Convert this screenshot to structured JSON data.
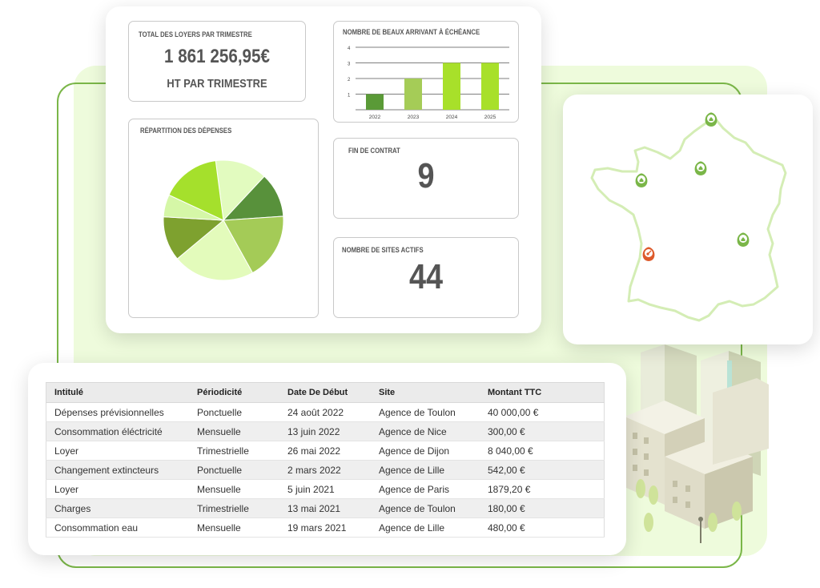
{
  "dashboard": {
    "total_rent": {
      "caption": "TOTAL DES LOYERS PAR TRIMESTRE",
      "value": "1 861 256,95€",
      "subtitle": "HT PAR TRIMESTRE"
    },
    "leases_chart": {
      "caption": "NOMBRE DE BEAUX ARRIVANT À ÉCHÉANCE"
    },
    "expenses": {
      "caption": "RÉPARTITION DES DÉPENSES"
    },
    "end_of_contract": {
      "caption": "FIN DE CONTRAT",
      "value": "9"
    },
    "active_sites": {
      "caption": "NOMBRE DE SITES ACTIFS",
      "value": "44"
    }
  },
  "chart_data": [
    {
      "type": "bar",
      "title": "NOMBRE DE BEAUX ARRIVANT À ÉCHÉANCE",
      "categories": [
        "2022",
        "2023",
        "2024",
        "2025"
      ],
      "values": [
        1,
        2,
        3,
        3
      ],
      "yticks": [
        "1",
        "2",
        "3",
        "4"
      ],
      "ylim": [
        0,
        4
      ],
      "grid": true,
      "colors": [
        "#5a9a37",
        "#a5cc57",
        "#a8e02a",
        "#a8e02a"
      ]
    },
    {
      "type": "pie",
      "title": "RÉPARTITION DES DÉPENSES",
      "values": [
        14,
        12,
        18,
        22,
        12,
        6,
        16
      ],
      "colors": [
        "#e2fbbf",
        "#58913b",
        "#a4cb57",
        "#e3fbbb",
        "#7ea12f",
        "#d5f7a7",
        "#a5e02c"
      ]
    }
  ],
  "map": {
    "markers": [
      {
        "name": "Lille",
        "color": "#7ab648",
        "type": "building"
      },
      {
        "name": "Paris",
        "color": "#7ab648",
        "type": "building"
      },
      {
        "name": "Nantes",
        "color": "#7ab648",
        "type": "building"
      },
      {
        "name": "Lyon",
        "color": "#7ab648",
        "type": "building"
      },
      {
        "name": "Bordeaux",
        "color": "#dd5a2b",
        "type": "key"
      }
    ]
  },
  "table": {
    "headers": [
      "Intitulé",
      "Périodicité",
      "Date De Début",
      "Site",
      "Montant TTC"
    ],
    "rows": [
      [
        "Dépenses prévisionnelles",
        "Ponctuelle",
        "24 août 2022",
        "Agence de Toulon",
        "40 000,00 €"
      ],
      [
        "Consommation éléctricité",
        "Mensuelle",
        "13 juin 2022",
        "Agence de Nice",
        "300,00 €"
      ],
      [
        "Loyer",
        "Trimestrielle",
        "26 mai 2022",
        "Agence de Dijon",
        "8 040,00 €"
      ],
      [
        "Changement extincteurs",
        "Ponctuelle",
        "2 mars 2022",
        "Agence de Lille",
        "542,00 €"
      ],
      [
        "Loyer",
        "Mensuelle",
        "5 juin 2021",
        "Agence de Paris",
        "1879,20 €"
      ],
      [
        "Charges",
        "Trimestrielle",
        "13 mai 2021",
        "Agence de Toulon",
        "180,00 €"
      ],
      [
        "Consommation eau",
        "Mensuelle",
        "19 mars 2021",
        "Agence de Lille",
        "480,00 €"
      ]
    ]
  },
  "colors": {
    "accent": "#7ab648",
    "background_panel": "#eefbdc",
    "alert_marker": "#dd5a2b"
  }
}
